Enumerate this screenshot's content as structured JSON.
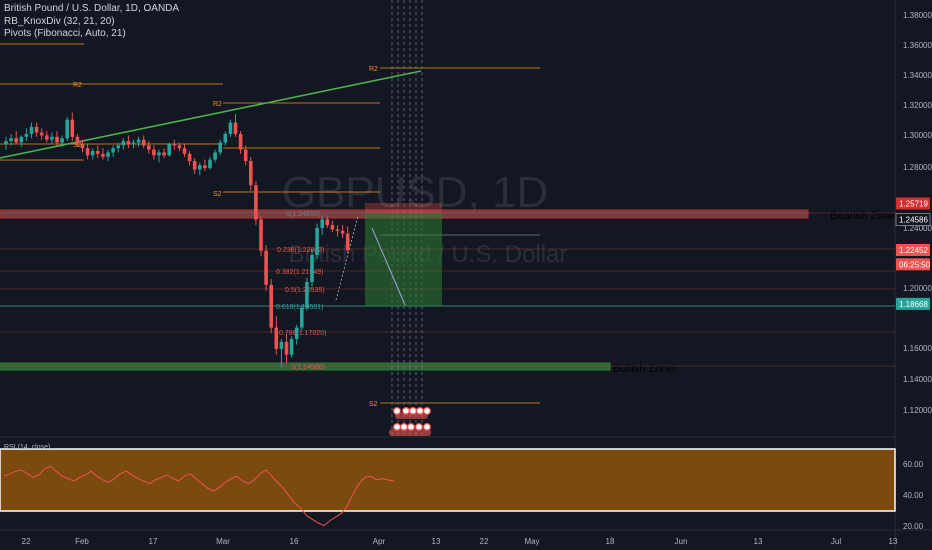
{
  "header": {
    "symbol_line": "British Pound / U.S. Dollar, 1D, OANDA",
    "indicator_1": "RB_KnoxDiv (32, 21, 20)",
    "indicator_2": "Pivots (Fibonacci, Auto, 21)"
  },
  "watermark": {
    "ticker": "GBPUSD, 1D",
    "name": "British Pound / U.S. Dollar"
  },
  "rsi_label": "RSI (14, close)",
  "colors": {
    "background": "#131722",
    "up": "#26a69a",
    "down": "#ef5350",
    "pivot": "#f7931a",
    "fib": "#ef5350",
    "trend": "#4caf50",
    "bearish_zone": "#e57373",
    "bullish_zone": "#4caf50",
    "rsi_band": "#7a4a0f"
  },
  "chart_data": {
    "type": "candlestick",
    "x_ticks": [
      "22",
      "Feb",
      "17",
      "Mar",
      "16",
      "Apr",
      "13",
      "22",
      "May",
      "18",
      "Jun",
      "13",
      "Jul",
      "13"
    ],
    "y_ticks": [
      "1.38000",
      "1.36000",
      "1.34000",
      "1.32000",
      "1.30000",
      "1.28000",
      "1.24000",
      "1.20000",
      "1.16000",
      "1.14000",
      "1.12000"
    ],
    "ylim": [
      1.103,
      1.392
    ],
    "price_tags": [
      {
        "value": 1.25719,
        "label": "1.25719",
        "color": "#d32f2f"
      },
      {
        "value": 1.24586,
        "label": "1.24586",
        "color": "#131722"
      },
      {
        "value": 1.22452,
        "label": "1.22452",
        "color": "#ef5350"
      },
      {
        "value": 1.21445,
        "label": "06:25:50",
        "color": "#ef5350"
      },
      {
        "value": 1.18668,
        "label": "1.18668",
        "color": "#26a69a"
      }
    ],
    "pivot_labels": [
      "R2",
      "S2",
      "R2",
      "S2",
      "R2",
      "S2"
    ],
    "fib_labels": [
      "0(1.24850)",
      "0.236(1.22802)",
      "0.382(1.21549)",
      "0.5(1.20535)",
      "0.618(1.19501)",
      "0.786(1.17020)",
      "1(1.14580)"
    ],
    "zones": {
      "bearish": "Bearish Zone",
      "bullish": "Bullish Zone!"
    },
    "rsi": {
      "y_ticks": [
        "60.00",
        "40.00",
        "20.00"
      ],
      "ylim": [
        16,
        84
      ],
      "band": [
        30,
        70
      ],
      "values": [
        62,
        64,
        66,
        67,
        64,
        61,
        63,
        68,
        70,
        66,
        62,
        60,
        58,
        61,
        63,
        66,
        62,
        59,
        57,
        60,
        64,
        66,
        63,
        60,
        58,
        56,
        59,
        61,
        63,
        60,
        58,
        62,
        64,
        60,
        56,
        52,
        50,
        53,
        57,
        60,
        62,
        58,
        56,
        59,
        64,
        67,
        62,
        57,
        52,
        46,
        40,
        36,
        30,
        27,
        24,
        22,
        26,
        29,
        32,
        38,
        48,
        56,
        61,
        62,
        59,
        60,
        59,
        58
      ]
    },
    "candles": [
      [
        1.299,
        1.304,
        1.295,
        1.301
      ],
      [
        1.301,
        1.306,
        1.298,
        1.303
      ],
      [
        1.303,
        1.308,
        1.299,
        1.3
      ],
      [
        1.3,
        1.305,
        1.297,
        1.304
      ],
      [
        1.304,
        1.31,
        1.301,
        1.306
      ],
      [
        1.306,
        1.314,
        1.303,
        1.311
      ],
      [
        1.311,
        1.314,
        1.304,
        1.307
      ],
      [
        1.307,
        1.31,
        1.302,
        1.305
      ],
      [
        1.305,
        1.308,
        1.3,
        1.302
      ],
      [
        1.302,
        1.307,
        1.299,
        1.304
      ],
      [
        1.304,
        1.308,
        1.298,
        1.3
      ],
      [
        1.3,
        1.305,
        1.297,
        1.303
      ],
      [
        1.303,
        1.318,
        1.301,
        1.316
      ],
      [
        1.316,
        1.321,
        1.301,
        1.304
      ],
      [
        1.304,
        1.306,
        1.297,
        1.299
      ],
      [
        1.299,
        1.302,
        1.293,
        1.296
      ],
      [
        1.296,
        1.299,
        1.288,
        1.291
      ],
      [
        1.291,
        1.296,
        1.288,
        1.294
      ],
      [
        1.294,
        1.298,
        1.289,
        1.292
      ],
      [
        1.292,
        1.296,
        1.288,
        1.29
      ],
      [
        1.29,
        1.295,
        1.287,
        1.293
      ],
      [
        1.293,
        1.298,
        1.29,
        1.296
      ],
      [
        1.296,
        1.3,
        1.293,
        1.298
      ],
      [
        1.298,
        1.303,
        1.295,
        1.301
      ],
      [
        1.301,
        1.305,
        1.296,
        1.299
      ],
      [
        1.299,
        1.302,
        1.296,
        1.3
      ],
      [
        1.3,
        1.304,
        1.297,
        1.302
      ],
      [
        1.302,
        1.305,
        1.296,
        1.298
      ],
      [
        1.298,
        1.301,
        1.292,
        1.295
      ],
      [
        1.295,
        1.298,
        1.288,
        1.291
      ],
      [
        1.291,
        1.295,
        1.286,
        1.293
      ],
      [
        1.293,
        1.296,
        1.289,
        1.291
      ],
      [
        1.291,
        1.3,
        1.29,
        1.299
      ],
      [
        1.299,
        1.302,
        1.295,
        1.298
      ],
      [
        1.298,
        1.3,
        1.294,
        1.296
      ],
      [
        1.296,
        1.299,
        1.29,
        1.292
      ],
      [
        1.292,
        1.294,
        1.284,
        1.287
      ],
      [
        1.287,
        1.289,
        1.278,
        1.281
      ],
      [
        1.281,
        1.286,
        1.277,
        1.284
      ],
      [
        1.284,
        1.288,
        1.28,
        1.282
      ],
      [
        1.282,
        1.29,
        1.281,
        1.288
      ],
      [
        1.288,
        1.295,
        1.286,
        1.293
      ],
      [
        1.293,
        1.302,
        1.291,
        1.3
      ],
      [
        1.3,
        1.308,
        1.298,
        1.306
      ],
      [
        1.306,
        1.316,
        1.304,
        1.314
      ],
      [
        1.314,
        1.32,
        1.304,
        1.306
      ],
      [
        1.306,
        1.308,
        1.292,
        1.295
      ],
      [
        1.295,
        1.298,
        1.284,
        1.287
      ],
      [
        1.287,
        1.29,
        1.266,
        1.27
      ],
      [
        1.27,
        1.273,
        1.242,
        1.246
      ],
      [
        1.246,
        1.248,
        1.22,
        1.224
      ],
      [
        1.224,
        1.228,
        1.196,
        1.2
      ],
      [
        1.2,
        1.204,
        1.166,
        1.17
      ],
      [
        1.17,
        1.178,
        1.151,
        1.155
      ],
      [
        1.155,
        1.162,
        1.142,
        1.16
      ],
      [
        1.16,
        1.166,
        1.145,
        1.151
      ],
      [
        1.151,
        1.164,
        1.149,
        1.162
      ],
      [
        1.162,
        1.172,
        1.158,
        1.17
      ],
      [
        1.17,
        1.186,
        1.168,
        1.184
      ],
      [
        1.184,
        1.205,
        1.182,
        1.202
      ],
      [
        1.202,
        1.225,
        1.199,
        1.221
      ],
      [
        1.221,
        1.243,
        1.218,
        1.24
      ],
      [
        1.24,
        1.249,
        1.235,
        1.246
      ],
      [
        1.246,
        1.248,
        1.24,
        1.242
      ],
      [
        1.242,
        1.245,
        1.237,
        1.239
      ],
      [
        1.239,
        1.242,
        1.234,
        1.238
      ],
      [
        1.238,
        1.242,
        1.233,
        1.236
      ],
      [
        1.236,
        1.241,
        1.222,
        1.2245
      ]
    ]
  }
}
